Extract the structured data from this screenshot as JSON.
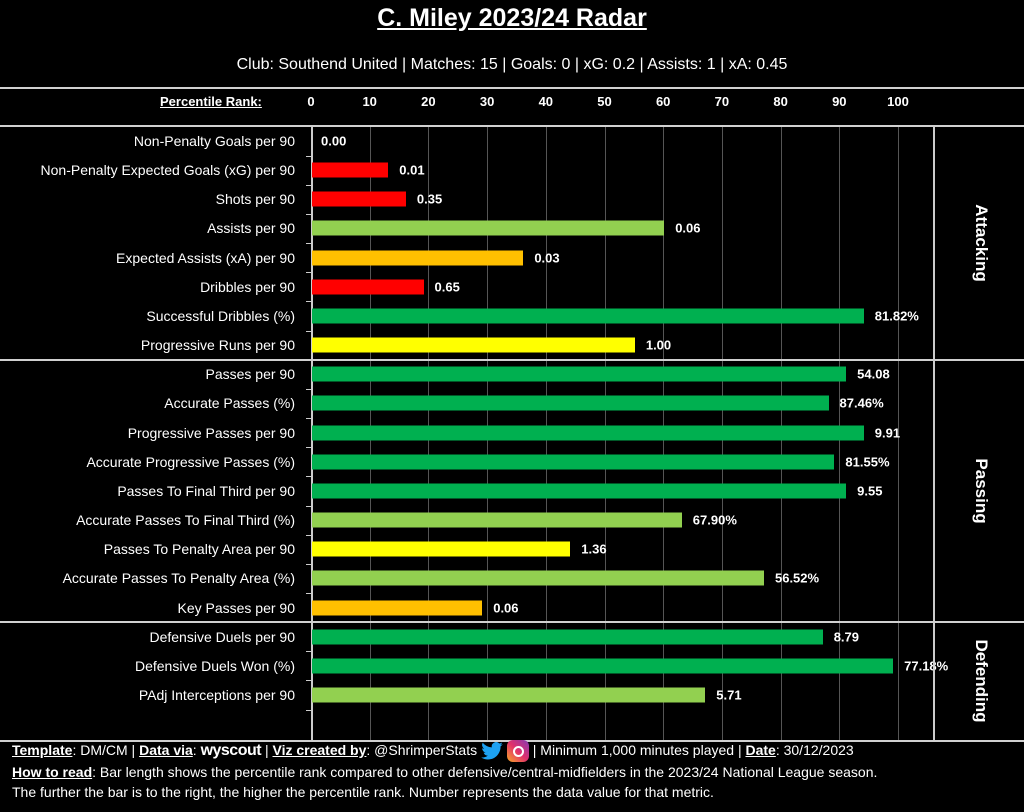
{
  "chart_data": {
    "type": "bar",
    "orientation": "horizontal",
    "title": "C. Miley 2023/24 Radar",
    "subtitle": "Club: Southend United | Matches: 15 | Goals: 0 | xG: 0.2 | Assists: 1 | xA: 0.45",
    "xlabel": "Percentile Rank:",
    "xlim": [
      0,
      100
    ],
    "xticks": [
      "0",
      "10",
      "20",
      "30",
      "40",
      "50",
      "60",
      "70",
      "80",
      "90",
      "100"
    ],
    "grid": true,
    "colors": {
      "elite": "#00b050",
      "good": "#92d050",
      "mid": "#ffff00",
      "low": "#ffc000",
      "poor": "#ff0000"
    },
    "sections": [
      {
        "name": "Attacking",
        "rows": [
          {
            "metric": "Non-Penalty Goals per 90",
            "percentile": 0,
            "value": "0.00",
            "color": "#ff0000"
          },
          {
            "metric": "Non-Penalty Expected Goals (xG) per 90",
            "percentile": 13,
            "value": "0.01",
            "color": "#ff0000"
          },
          {
            "metric": "Shots per 90",
            "percentile": 16,
            "value": "0.35",
            "color": "#ff0000"
          },
          {
            "metric": "Assists per 90",
            "percentile": 60,
            "value": "0.06",
            "color": "#92d050"
          },
          {
            "metric": "Expected Assists (xA) per 90",
            "percentile": 36,
            "value": "0.03",
            "color": "#ffc000"
          },
          {
            "metric": "Dribbles per 90",
            "percentile": 19,
            "value": "0.65",
            "color": "#ff0000"
          },
          {
            "metric": "Successful Dribbles (%)",
            "percentile": 94,
            "value": "81.82%",
            "color": "#00b050"
          },
          {
            "metric": "Progressive Runs per 90",
            "percentile": 55,
            "value": "1.00",
            "color": "#ffff00"
          }
        ]
      },
      {
        "name": "Passing",
        "rows": [
          {
            "metric": "Passes per 90",
            "percentile": 91,
            "value": "54.08",
            "color": "#00b050"
          },
          {
            "metric": "Accurate Passes (%)",
            "percentile": 88,
            "value": "87.46%",
            "color": "#00b050"
          },
          {
            "metric": "Progressive Passes per 90",
            "percentile": 94,
            "value": "9.91",
            "color": "#00b050"
          },
          {
            "metric": "Accurate Progressive Passes (%)",
            "percentile": 89,
            "value": "81.55%",
            "color": "#00b050"
          },
          {
            "metric": "Passes To Final Third per 90",
            "percentile": 91,
            "value": "9.55",
            "color": "#00b050"
          },
          {
            "metric": "Accurate Passes To Final Third (%)",
            "percentile": 63,
            "value": "67.90%",
            "color": "#92d050"
          },
          {
            "metric": "Passes To Penalty Area per 90",
            "percentile": 44,
            "value": "1.36",
            "color": "#ffff00"
          },
          {
            "metric": "Accurate Passes To Penalty Area (%)",
            "percentile": 77,
            "value": "56.52%",
            "color": "#92d050"
          },
          {
            "metric": "Key Passes per 90",
            "percentile": 29,
            "value": "0.06",
            "color": "#ffc000"
          }
        ]
      },
      {
        "name": "Defending",
        "rows": [
          {
            "metric": "Defensive Duels per 90",
            "percentile": 87,
            "value": "8.79",
            "color": "#00b050"
          },
          {
            "metric": "Defensive Duels Won (%)",
            "percentile": 99,
            "value": "77.18%",
            "color": "#00b050"
          },
          {
            "metric": "PAdj Interceptions per 90",
            "percentile": 67,
            "value": "5.71",
            "color": "#92d050"
          }
        ]
      }
    ]
  },
  "footer": {
    "template_label": "Template",
    "template_value": ": DM/CM | ",
    "data_via_label": "Data via",
    "data_via_sep": ": ",
    "data_source_logo": "wyscout",
    "sep1": " | ",
    "viz_label": "Viz created by",
    "viz_value": ": @ShrimperStats ",
    "twitter_icon": "twitter-icon",
    "instagram_icon": "instagram-icon",
    "min_minutes": " | Minimum 1,000 minutes played | ",
    "date_label": "Date",
    "date_value": ": 30/12/2023",
    "how_label": "How to read",
    "how_text": ": Bar length shows the percentile rank compared to other defensive/central-midfielders in the 2023/24 National League season.",
    "how_text2": "The further the bar is to the right, the higher the percentile rank. Number represents the data value for that metric."
  }
}
